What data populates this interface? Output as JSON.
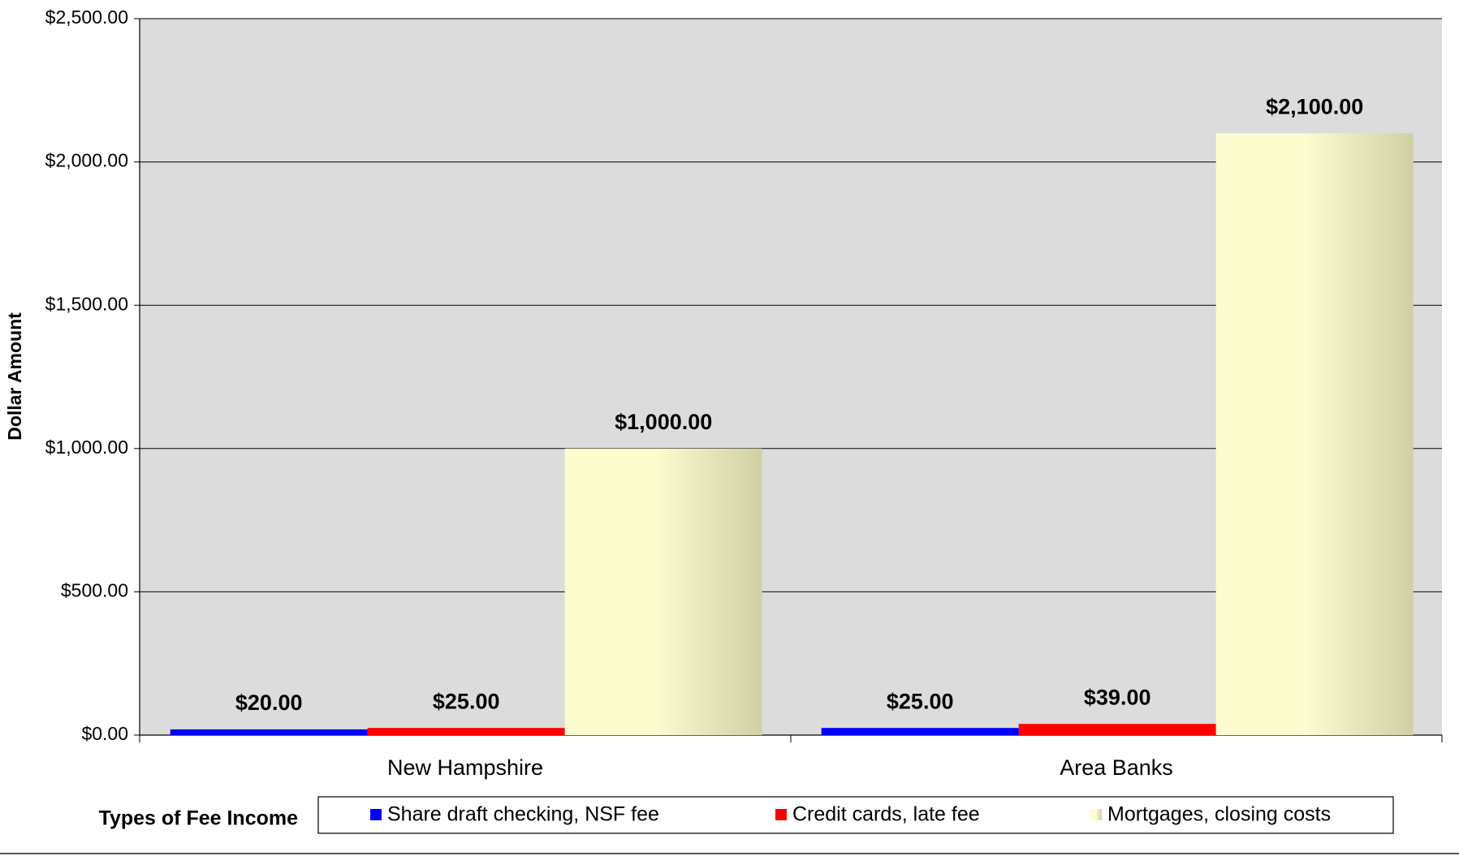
{
  "chart_data": {
    "type": "bar",
    "y_label": "Dollar Amount",
    "legend_title": "Types of Fee Income",
    "categories": [
      "New Hampshire",
      "Area Banks"
    ],
    "series": [
      {
        "name": "Share draft checking, NSF fee",
        "color": "#0000ff",
        "values": [
          20,
          25
        ],
        "value_labels": [
          "$20.00",
          "$25.00"
        ]
      },
      {
        "name": "Credit cards, late fee",
        "color": "#ff0000",
        "values": [
          25,
          39
        ],
        "value_labels": [
          "$25.00",
          "$39.00"
        ]
      },
      {
        "name": "Mortgages, closing costs",
        "color": "#fdfccf",
        "values": [
          1000,
          2100
        ],
        "value_labels": [
          "$1,000.00",
          "$2,100.00"
        ]
      }
    ],
    "ylim": [
      0,
      2500
    ],
    "yticks": [
      {
        "value": 0,
        "label": "$0.00"
      },
      {
        "value": 500,
        "label": "$500.00"
      },
      {
        "value": 1000,
        "label": "$1,000.00"
      },
      {
        "value": 1500,
        "label": "$1,500.00"
      },
      {
        "value": 2000,
        "label": "$2,000.00"
      },
      {
        "value": 2500,
        "label": "$2,500.00"
      }
    ],
    "grid": true
  }
}
